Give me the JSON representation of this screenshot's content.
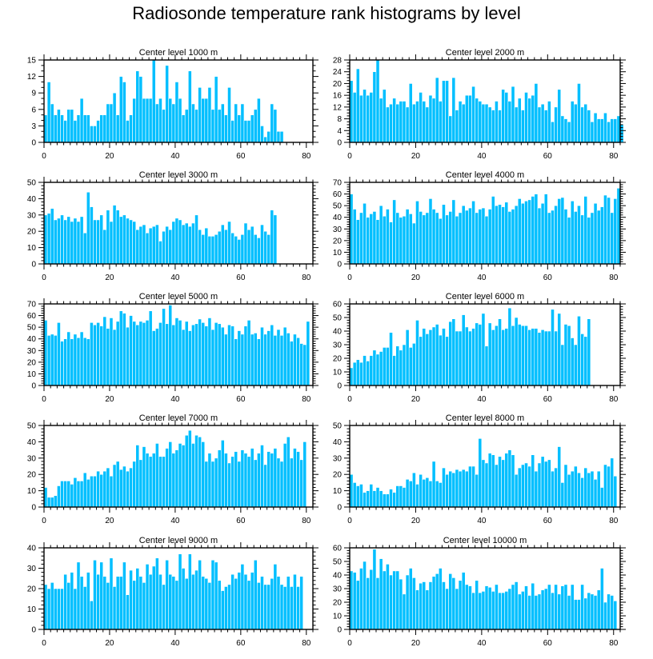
{
  "title": "Radiosonde temperature rank histograms by level",
  "colors": {
    "bar": "#00bfff",
    "bar_edge": "#ffffff",
    "axis": "#000000",
    "background": "#ffffff"
  },
  "chart_data": [
    {
      "type": "bar",
      "title": "Center level 1000 m",
      "xlim": [
        0,
        82
      ],
      "ylim": [
        0,
        15
      ],
      "xticks": [
        0,
        20,
        40,
        60,
        80
      ],
      "yticks": [
        0,
        3,
        6,
        9,
        12,
        15
      ],
      "x_start": 0,
      "values": [
        5,
        11,
        7,
        5,
        6,
        5,
        4,
        6,
        6,
        4,
        5,
        8,
        5,
        5,
        3,
        3,
        4,
        5,
        5,
        7,
        7,
        9,
        5,
        12,
        11,
        4,
        5,
        8,
        13,
        12,
        8,
        8,
        8,
        15,
        7,
        8,
        6,
        14,
        8,
        7,
        11,
        8,
        5,
        6,
        13,
        7,
        6,
        10,
        8,
        8,
        10,
        6,
        12,
        6,
        7,
        5,
        10,
        4,
        7,
        5,
        7,
        4,
        4,
        5,
        6,
        8,
        3,
        1,
        2,
        7,
        6,
        2,
        2
      ]
    },
    {
      "type": "bar",
      "title": "Center level 2000 m",
      "xlim": [
        0,
        82
      ],
      "ylim": [
        0,
        28
      ],
      "xticks": [
        0,
        20,
        40,
        60,
        80
      ],
      "yticks": [
        0,
        4,
        8,
        12,
        16,
        20,
        24,
        28
      ],
      "x_start": 0,
      "values": [
        21,
        17,
        25,
        16,
        18,
        16,
        17,
        24,
        28,
        15,
        18,
        12,
        13,
        15,
        13,
        14,
        14,
        12,
        20,
        13,
        14,
        17,
        14,
        12,
        16,
        15,
        22,
        14,
        21,
        21,
        9,
        22,
        11,
        14,
        13,
        16,
        16,
        19,
        15,
        14,
        13,
        13,
        12,
        11,
        14,
        11,
        18,
        17,
        14,
        19,
        12,
        15,
        11,
        17,
        15,
        16,
        20,
        12,
        13,
        11,
        14,
        7,
        12,
        18,
        9,
        8,
        7,
        14,
        13,
        20,
        12,
        13,
        11,
        7,
        10,
        8,
        8,
        10,
        7,
        8,
        8,
        9,
        6
      ]
    },
    {
      "type": "bar",
      "title": "Center level 3000 m",
      "xlim": [
        0,
        82
      ],
      "ylim": [
        0,
        50
      ],
      "xticks": [
        0,
        20,
        40,
        60,
        80
      ],
      "yticks": [
        0,
        10,
        20,
        30,
        40,
        50
      ],
      "x_start": 0,
      "values": [
        30,
        31,
        34,
        27,
        28,
        30,
        27,
        29,
        26,
        28,
        26,
        29,
        19,
        44,
        35,
        27,
        27,
        30,
        21,
        33,
        26,
        36,
        33,
        29,
        30,
        28,
        27,
        26,
        21,
        23,
        24,
        19,
        22,
        23,
        24,
        14,
        20,
        23,
        21,
        26,
        28,
        27,
        24,
        25,
        23,
        25,
        30,
        21,
        18,
        22,
        17,
        17,
        18,
        20,
        24,
        21,
        26,
        19,
        17,
        15,
        18,
        25,
        21,
        23,
        18,
        16,
        24,
        20,
        18,
        33,
        30
      ]
    },
    {
      "type": "bar",
      "title": "Center level 4000 m",
      "xlim": [
        0,
        82
      ],
      "ylim": [
        0,
        70
      ],
      "xticks": [
        0,
        20,
        40,
        60,
        80
      ],
      "yticks": [
        0,
        10,
        20,
        30,
        40,
        50,
        60,
        70
      ],
      "x_start": 0,
      "values": [
        60,
        47,
        38,
        44,
        52,
        40,
        43,
        45,
        38,
        50,
        41,
        47,
        36,
        55,
        44,
        40,
        41,
        47,
        43,
        35,
        54,
        45,
        42,
        44,
        56,
        47,
        44,
        39,
        51,
        42,
        45,
        55,
        41,
        44,
        50,
        46,
        48,
        54,
        44,
        47,
        48,
        41,
        47,
        58,
        50,
        51,
        49,
        53,
        45,
        47,
        50,
        56,
        52,
        54,
        55,
        58,
        60,
        48,
        52,
        60,
        44,
        46,
        50,
        56,
        57,
        47,
        40,
        54,
        45,
        50,
        42,
        58,
        40,
        44,
        52,
        46,
        49,
        59,
        57,
        44,
        56,
        65
      ]
    },
    {
      "type": "bar",
      "title": "Center level 5000 m",
      "xlim": [
        0,
        82
      ],
      "ylim": [
        0,
        70
      ],
      "xticks": [
        0,
        20,
        40,
        60,
        80
      ],
      "yticks": [
        0,
        10,
        20,
        30,
        40,
        50,
        60,
        70
      ],
      "x_start": 0,
      "values": [
        56,
        43,
        44,
        43,
        54,
        38,
        40,
        46,
        40,
        44,
        41,
        46,
        41,
        40,
        54,
        52,
        54,
        51,
        59,
        49,
        58,
        48,
        55,
        64,
        62,
        50,
        60,
        55,
        52,
        55,
        54,
        56,
        64,
        47,
        49,
        54,
        66,
        53,
        69,
        52,
        58,
        56,
        48,
        55,
        47,
        52,
        53,
        57,
        54,
        51,
        58,
        48,
        54,
        53,
        50,
        44,
        52,
        51,
        40,
        47,
        44,
        51,
        56,
        44,
        45,
        40,
        50,
        44,
        47,
        52,
        43,
        48,
        43,
        50,
        45,
        38,
        44,
        41,
        36,
        35,
        55
      ]
    },
    {
      "type": "bar",
      "title": "Center level 6000 m",
      "xlim": [
        0,
        82
      ],
      "ylim": [
        0,
        60
      ],
      "xticks": [
        0,
        20,
        40,
        60,
        80
      ],
      "yticks": [
        0,
        10,
        20,
        30,
        40,
        50,
        60
      ],
      "x_start": 0,
      "values": [
        13,
        17,
        19,
        17,
        22,
        18,
        22,
        26,
        23,
        25,
        28,
        28,
        39,
        22,
        29,
        26,
        30,
        41,
        28,
        31,
        48,
        36,
        42,
        38,
        41,
        43,
        45,
        37,
        42,
        36,
        47,
        49,
        40,
        40,
        52,
        43,
        40,
        42,
        46,
        45,
        53,
        29,
        46,
        41,
        44,
        49,
        41,
        42,
        57,
        44,
        50,
        45,
        44,
        44,
        41,
        42,
        42,
        39,
        41,
        40,
        40,
        56,
        40,
        53,
        30,
        45,
        44,
        35,
        30,
        51,
        38,
        36,
        49
      ]
    },
    {
      "type": "bar",
      "title": "Center level 7000 m",
      "xlim": [
        0,
        82
      ],
      "ylim": [
        0,
        50
      ],
      "xticks": [
        0,
        20,
        40,
        60,
        80
      ],
      "yticks": [
        0,
        10,
        20,
        30,
        40,
        50
      ],
      "x_start": 0,
      "values": [
        12,
        6,
        6,
        7,
        13,
        16,
        16,
        16,
        14,
        18,
        16,
        16,
        21,
        17,
        19,
        19,
        22,
        20,
        22,
        24,
        19,
        26,
        28,
        23,
        25,
        22,
        24,
        28,
        38,
        29,
        37,
        33,
        31,
        33,
        39,
        31,
        31,
        36,
        40,
        33,
        35,
        39,
        38,
        44,
        47,
        39,
        44,
        43,
        40,
        28,
        33,
        28,
        30,
        35,
        41,
        33,
        27,
        31,
        34,
        28,
        35,
        33,
        31,
        36,
        29,
        33,
        38,
        26,
        34,
        33,
        36,
        30,
        28,
        39,
        43,
        30,
        36,
        34,
        29,
        40
      ]
    },
    {
      "type": "bar",
      "title": "Center level 8000 m",
      "xlim": [
        0,
        82
      ],
      "ylim": [
        0,
        50
      ],
      "xticks": [
        0,
        20,
        40,
        60,
        80
      ],
      "yticks": [
        0,
        10,
        20,
        30,
        40,
        50
      ],
      "x_start": 0,
      "values": [
        20,
        15,
        13,
        14,
        9,
        10,
        14,
        10,
        12,
        10,
        8,
        8,
        11,
        9,
        13,
        13,
        12,
        17,
        16,
        21,
        14,
        20,
        17,
        18,
        16,
        28,
        16,
        15,
        24,
        20,
        22,
        21,
        23,
        22,
        23,
        22,
        25,
        25,
        20,
        42,
        29,
        27,
        33,
        32,
        26,
        31,
        29,
        33,
        35,
        32,
        20,
        24,
        26,
        27,
        25,
        32,
        22,
        27,
        31,
        28,
        29,
        22,
        24,
        37,
        15,
        26,
        20,
        22,
        25,
        21,
        18,
        24,
        21,
        22,
        17,
        22,
        12,
        26,
        25,
        30,
        19
      ]
    },
    {
      "type": "bar",
      "title": "Center level 9000 m",
      "xlim": [
        0,
        82
      ],
      "ylim": [
        0,
        40
      ],
      "xticks": [
        0,
        20,
        40,
        60,
        80
      ],
      "yticks": [
        0,
        10,
        20,
        30,
        40
      ],
      "x_start": 0,
      "values": [
        22,
        20,
        23,
        20,
        20,
        20,
        27,
        23,
        28,
        20,
        33,
        26,
        21,
        28,
        14,
        34,
        27,
        33,
        26,
        23,
        35,
        21,
        26,
        26,
        33,
        17,
        29,
        24,
        30,
        26,
        23,
        32,
        27,
        31,
        35,
        27,
        22,
        34,
        27,
        26,
        24,
        37,
        30,
        25,
        37,
        27,
        29,
        34,
        26,
        25,
        23,
        34,
        33,
        24,
        19,
        21,
        22,
        27,
        25,
        28,
        32,
        27,
        24,
        28,
        34,
        23,
        26,
        22,
        22,
        25,
        32,
        26,
        22,
        21,
        26,
        21,
        27,
        21,
        26
      ]
    },
    {
      "type": "bar",
      "title": "Center level 10000 m",
      "xlim": [
        0,
        82
      ],
      "ylim": [
        0,
        60
      ],
      "xticks": [
        0,
        20,
        40,
        60,
        80
      ],
      "yticks": [
        0,
        10,
        20,
        30,
        40,
        50,
        60
      ],
      "x_start": 0,
      "values": [
        43,
        42,
        36,
        45,
        50,
        38,
        44,
        59,
        38,
        52,
        43,
        48,
        40,
        43,
        43,
        37,
        26,
        40,
        45,
        38,
        29,
        34,
        35,
        29,
        35,
        39,
        41,
        45,
        35,
        30,
        41,
        38,
        30,
        36,
        42,
        33,
        32,
        27,
        36,
        27,
        28,
        32,
        31,
        28,
        33,
        27,
        27,
        28,
        30,
        33,
        35,
        26,
        28,
        32,
        25,
        34,
        25,
        26,
        29,
        30,
        33,
        27,
        33,
        26,
        32,
        33,
        25,
        33,
        22,
        22,
        33,
        23,
        27,
        26,
        25,
        29,
        45,
        20,
        26,
        25,
        21
      ]
    }
  ]
}
